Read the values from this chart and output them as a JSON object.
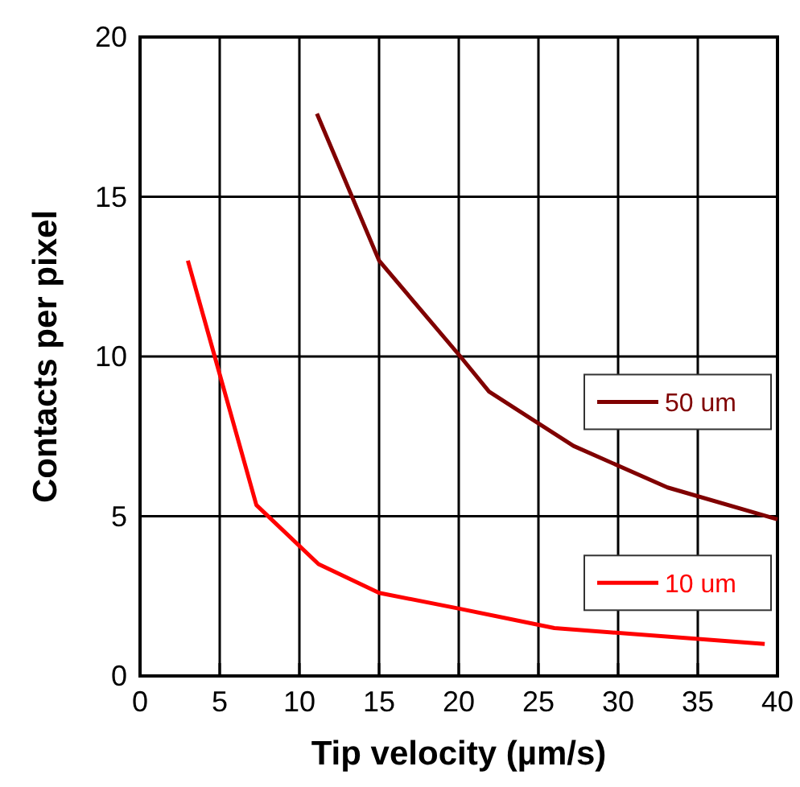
{
  "chart_data": {
    "type": "line",
    "xlabel": "Tip velocity (µm/s)",
    "ylabel": "Contacts per pixel",
    "xlim": [
      0,
      40
    ],
    "ylim": [
      0,
      20
    ],
    "xticks": [
      0,
      5,
      10,
      15,
      20,
      25,
      30,
      35,
      40
    ],
    "yticks": [
      0,
      5,
      10,
      15,
      20
    ],
    "grid": true,
    "legend": "right",
    "marker": "none",
    "line_style": "solid",
    "series": [
      {
        "name": "50 um",
        "color": "#800000",
        "x": [
          11.1,
          15,
          20.1,
          21.9,
          27.2,
          33.1,
          40
        ],
        "values": [
          17.6,
          13,
          10,
          8.9,
          7.2,
          5.9,
          4.9
        ]
      },
      {
        "name": "10 um",
        "color": "#ff0000",
        "x": [
          3,
          7.3,
          11.2,
          15,
          20.1,
          26,
          39.2
        ],
        "values": [
          13,
          5.35,
          3.5,
          2.6,
          2.1,
          1.5,
          1
        ]
      }
    ]
  }
}
